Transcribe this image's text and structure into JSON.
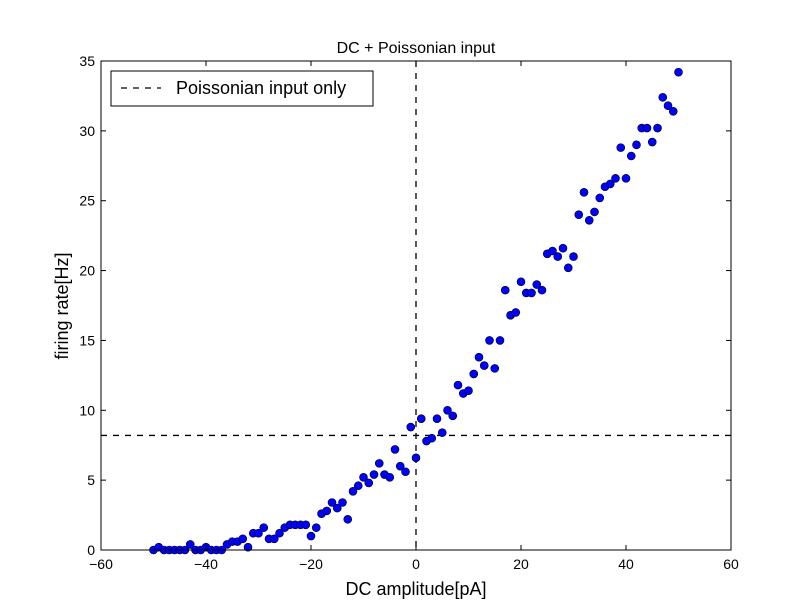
{
  "chart_data": {
    "type": "scatter",
    "title": "DC + Poissonian input",
    "xlabel": "DC amplitude[pA]",
    "ylabel": "firing rate[Hz]",
    "xlim": [
      -60,
      60
    ],
    "ylim": [
      0,
      35
    ],
    "xticks": [
      -60,
      -40,
      -20,
      0,
      20,
      40,
      60
    ],
    "yticks": [
      0,
      5,
      10,
      15,
      20,
      25,
      30,
      35
    ],
    "grid": false,
    "legend": {
      "location": "top-left",
      "entries": [
        "Poissonian input only"
      ]
    },
    "reference_lines": [
      {
        "orientation": "horizontal",
        "value": 8.2,
        "style": "dashed",
        "color": "#000000",
        "label": "Poissonian input only"
      },
      {
        "orientation": "vertical",
        "value": 0,
        "style": "dashed",
        "color": "#000000"
      }
    ],
    "series": [
      {
        "marker": "circle",
        "color": "#0000ff",
        "points": [
          [
            -50,
            0.0
          ],
          [
            -49,
            0.2
          ],
          [
            -48,
            0.0
          ],
          [
            -47,
            0.0
          ],
          [
            -46,
            0.0
          ],
          [
            -45,
            0.0
          ],
          [
            -44,
            0.0
          ],
          [
            -43,
            0.4
          ],
          [
            -42,
            0.0
          ],
          [
            -41,
            0.0
          ],
          [
            -40,
            0.2
          ],
          [
            -39,
            0.0
          ],
          [
            -38,
            0.0
          ],
          [
            -37,
            0.0
          ],
          [
            -36,
            0.4
          ],
          [
            -35,
            0.6
          ],
          [
            -34,
            0.6
          ],
          [
            -33,
            0.8
          ],
          [
            -32,
            0.2
          ],
          [
            -31,
            1.2
          ],
          [
            -30,
            1.2
          ],
          [
            -29,
            1.6
          ],
          [
            -28,
            0.8
          ],
          [
            -27,
            0.8
          ],
          [
            -26,
            1.2
          ],
          [
            -25,
            1.6
          ],
          [
            -24,
            1.8
          ],
          [
            -23,
            1.8
          ],
          [
            -22,
            1.8
          ],
          [
            -21,
            1.8
          ],
          [
            -20,
            1.0
          ],
          [
            -19,
            1.6
          ],
          [
            -18,
            2.6
          ],
          [
            -17,
            2.8
          ],
          [
            -16,
            3.4
          ],
          [
            -15,
            3.0
          ],
          [
            -14,
            3.4
          ],
          [
            -13,
            2.2
          ],
          [
            -12,
            4.2
          ],
          [
            -11,
            4.6
          ],
          [
            -10,
            5.2
          ],
          [
            -9,
            4.8
          ],
          [
            -8,
            5.4
          ],
          [
            -7,
            6.2
          ],
          [
            -6,
            5.4
          ],
          [
            -5,
            5.2
          ],
          [
            -4,
            7.2
          ],
          [
            -3,
            6.0
          ],
          [
            -2,
            5.6
          ],
          [
            -1,
            8.8
          ],
          [
            0,
            6.6
          ],
          [
            1,
            9.4
          ],
          [
            2,
            7.8
          ],
          [
            3,
            8.0
          ],
          [
            4,
            9.4
          ],
          [
            5,
            8.4
          ],
          [
            6,
            10.0
          ],
          [
            7,
            9.6
          ],
          [
            8,
            11.8
          ],
          [
            9,
            11.2
          ],
          [
            10,
            11.4
          ],
          [
            11,
            12.6
          ],
          [
            12,
            13.8
          ],
          [
            13,
            13.2
          ],
          [
            14,
            15.0
          ],
          [
            15,
            13.0
          ],
          [
            16,
            15.0
          ],
          [
            17,
            18.6
          ],
          [
            18,
            16.8
          ],
          [
            19,
            17.0
          ],
          [
            20,
            19.2
          ],
          [
            21,
            18.4
          ],
          [
            22,
            18.4
          ],
          [
            23,
            19.0
          ],
          [
            24,
            18.6
          ],
          [
            25,
            21.2
          ],
          [
            26,
            21.4
          ],
          [
            27,
            21.0
          ],
          [
            28,
            21.6
          ],
          [
            29,
            20.2
          ],
          [
            30,
            21.0
          ],
          [
            31,
            24.0
          ],
          [
            32,
            25.6
          ],
          [
            33,
            23.6
          ],
          [
            34,
            24.2
          ],
          [
            35,
            25.2
          ],
          [
            36,
            26.0
          ],
          [
            37,
            26.2
          ],
          [
            38,
            26.6
          ],
          [
            39,
            28.8
          ],
          [
            40,
            26.6
          ],
          [
            41,
            28.2
          ],
          [
            42,
            29.0
          ],
          [
            43,
            30.2
          ],
          [
            44,
            30.2
          ],
          [
            45,
            29.2
          ],
          [
            46,
            30.2
          ],
          [
            47,
            32.4
          ],
          [
            48,
            31.8
          ],
          [
            49,
            31.4
          ],
          [
            50,
            34.2
          ]
        ]
      }
    ]
  }
}
